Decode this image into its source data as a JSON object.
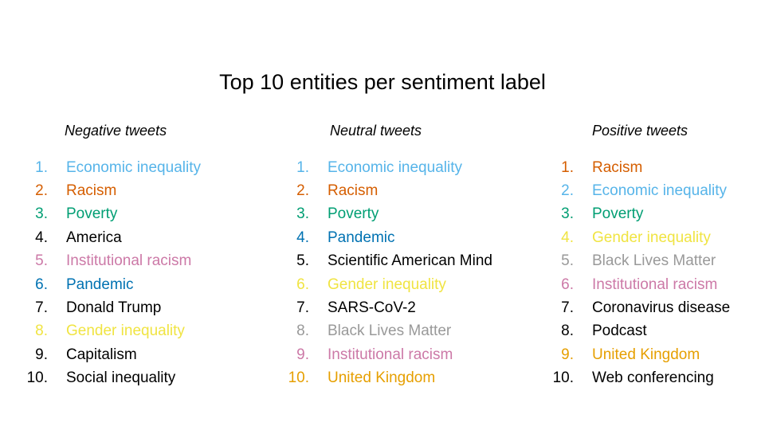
{
  "title": "Top 10 entities per sentiment label",
  "colors": {
    "sky_blue": "#56B4E9",
    "vermillion": "#D55E00",
    "green": "#009E73",
    "black": "#000000",
    "pink": "#CC79A7",
    "blue": "#0072B2",
    "yellow": "#F0E442",
    "grey": "#999999",
    "orange": "#E69F00"
  },
  "columns": [
    {
      "header": "Negative tweets",
      "entities": [
        {
          "rank": "1.",
          "name": "Economic inequality",
          "color": "#56B4E9"
        },
        {
          "rank": "2.",
          "name": "Racism",
          "color": "#D55E00"
        },
        {
          "rank": "3.",
          "name": "Poverty",
          "color": "#009E73"
        },
        {
          "rank": "4.",
          "name": "America",
          "color": "#000000"
        },
        {
          "rank": "5.",
          "name": "Institutional racism",
          "color": "#CC79A7"
        },
        {
          "rank": "6.",
          "name": "Pandemic",
          "color": "#0072B2"
        },
        {
          "rank": "7.",
          "name": "Donald Trump",
          "color": "#000000"
        },
        {
          "rank": "8.",
          "name": "Gender inequality",
          "color": "#F0E442"
        },
        {
          "rank": "9.",
          "name": "Capitalism",
          "color": "#000000"
        },
        {
          "rank": "10.",
          "name": "Social inequality",
          "color": "#000000"
        }
      ]
    },
    {
      "header": "Neutral tweets",
      "entities": [
        {
          "rank": "1.",
          "name": "Economic inequality",
          "color": "#56B4E9"
        },
        {
          "rank": "2.",
          "name": "Racism",
          "color": "#D55E00"
        },
        {
          "rank": "3.",
          "name": "Poverty",
          "color": "#009E73"
        },
        {
          "rank": "4.",
          "name": "Pandemic",
          "color": "#0072B2"
        },
        {
          "rank": "5.",
          "name": "Scientific American Mind",
          "color": "#000000"
        },
        {
          "rank": "6.",
          "name": "Gender inequality",
          "color": "#F0E442"
        },
        {
          "rank": "7.",
          "name": "SARS-CoV-2",
          "color": "#000000"
        },
        {
          "rank": "8.",
          "name": "Black Lives Matter",
          "color": "#999999"
        },
        {
          "rank": "9.",
          "name": "Institutional racism",
          "color": "#CC79A7"
        },
        {
          "rank": "10.",
          "name": "United Kingdom",
          "color": "#E69F00"
        }
      ]
    },
    {
      "header": "Positive tweets",
      "entities": [
        {
          "rank": "1.",
          "name": "Racism",
          "color": "#D55E00"
        },
        {
          "rank": "2.",
          "name": "Economic inequality",
          "color": "#56B4E9"
        },
        {
          "rank": "3.",
          "name": "Poverty",
          "color": "#009E73"
        },
        {
          "rank": "4.",
          "name": "Gender inequality",
          "color": "#F0E442"
        },
        {
          "rank": "5.",
          "name": "Black Lives Matter",
          "color": "#999999"
        },
        {
          "rank": "6.",
          "name": "Institutional racism",
          "color": "#CC79A7"
        },
        {
          "rank": "7.",
          "name": "Coronavirus disease",
          "color": "#000000"
        },
        {
          "rank": "8.",
          "name": "Podcast",
          "color": "#000000"
        },
        {
          "rank": "9.",
          "name": "United Kingdom",
          "color": "#E69F00"
        },
        {
          "rank": "10.",
          "name": "Web conferencing",
          "color": "#000000"
        }
      ]
    }
  ]
}
